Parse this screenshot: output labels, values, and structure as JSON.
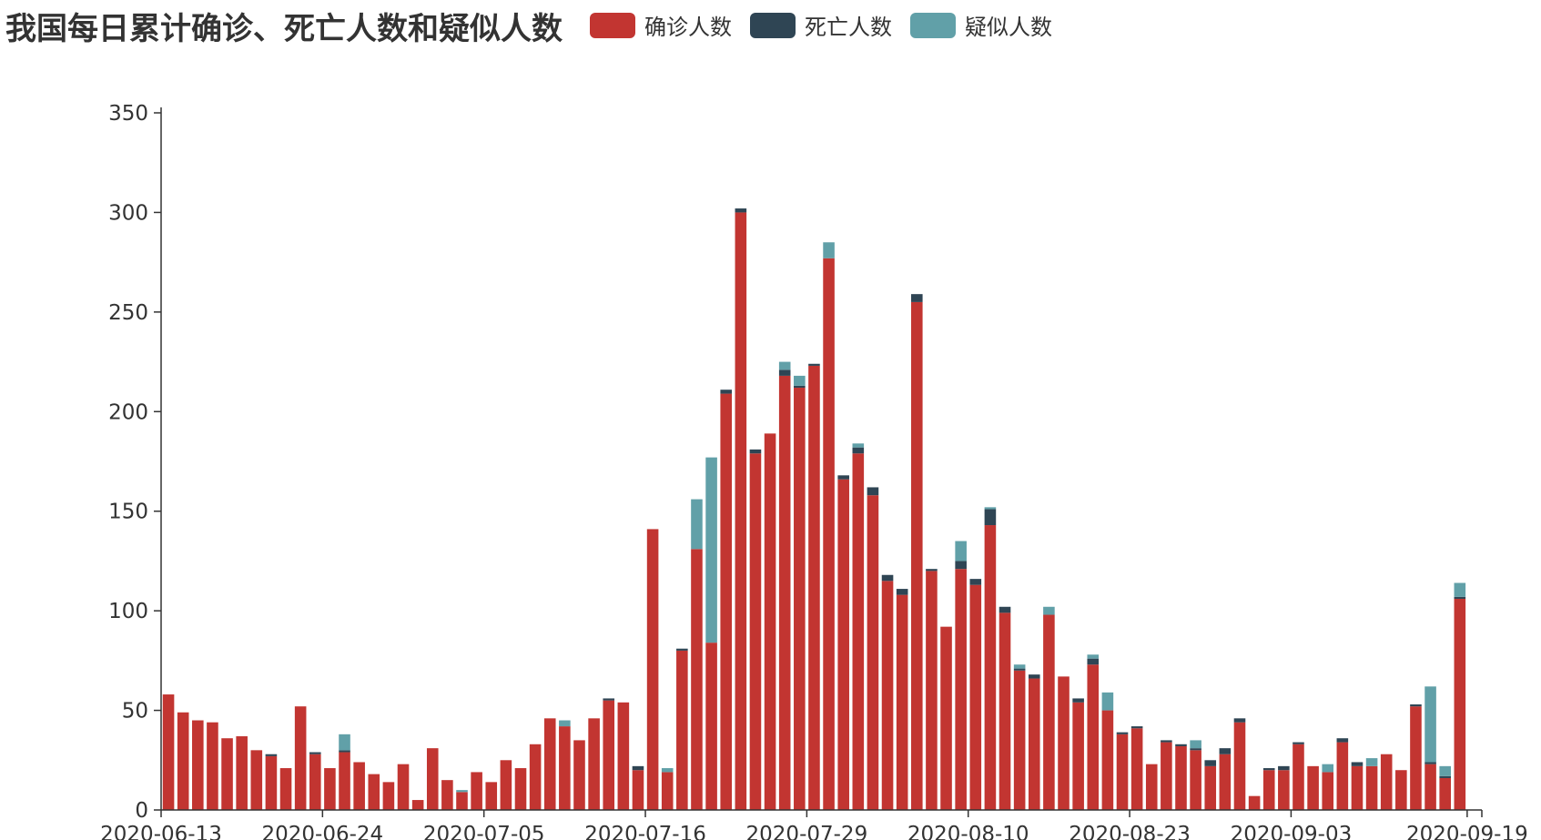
{
  "title": "我国每日累计确诊、死亡人数和疑似人数",
  "colors": {
    "confirmed": "#c23531",
    "deaths": "#2f4554",
    "suspected": "#61a0a8",
    "axis": "#333333"
  },
  "chart_data": {
    "type": "bar",
    "stacked": true,
    "title": "我国每日累计确诊、死亡人数和疑似人数",
    "legend_position": "top",
    "grid": false,
    "ylim": [
      0,
      350
    ],
    "y_ticks": [
      0,
      50,
      100,
      150,
      200,
      250,
      300,
      350
    ],
    "x_tick_labels": [
      "2020-06-13",
      "2020-06-24",
      "2020-07-05",
      "2020-07-16",
      "2020-07-29",
      "2020-08-10",
      "2020-08-23",
      "2020-09-03",
      "2020-09-19"
    ],
    "x_tick_indices": [
      0,
      11,
      22,
      33,
      44,
      55,
      66,
      77,
      89
    ],
    "categories": [
      "2020-06-13",
      "2020-06-14",
      "2020-06-15",
      "2020-06-16",
      "2020-06-17",
      "2020-06-18",
      "2020-06-19",
      "2020-06-20",
      "2020-06-21",
      "2020-06-22",
      "2020-06-23",
      "2020-06-24",
      "2020-06-25",
      "2020-06-26",
      "2020-06-27",
      "2020-06-28",
      "2020-06-29",
      "2020-06-30",
      "2020-07-01",
      "2020-07-02",
      "2020-07-03",
      "2020-07-04",
      "2020-07-05",
      "2020-07-06",
      "2020-07-07",
      "2020-07-08",
      "2020-07-09",
      "2020-07-10",
      "2020-07-11",
      "2020-07-12",
      "2020-07-13",
      "2020-07-14",
      "2020-07-15",
      "2020-07-16",
      "2020-07-17",
      "2020-07-18",
      "2020-07-19",
      "2020-07-20",
      "2020-07-21",
      "2020-07-22",
      "2020-07-23",
      "2020-07-24",
      "2020-07-25",
      "2020-07-26",
      "2020-07-29",
      "2020-07-30",
      "2020-07-31",
      "2020-08-01",
      "2020-08-02",
      "2020-08-03",
      "2020-08-04",
      "2020-08-05",
      "2020-08-06",
      "2020-08-07",
      "2020-08-08",
      "2020-08-10",
      "2020-08-11",
      "2020-08-12",
      "2020-08-13",
      "2020-08-14",
      "2020-08-15",
      "2020-08-16",
      "2020-08-17",
      "2020-08-18",
      "2020-08-19",
      "2020-08-20",
      "2020-08-23",
      "2020-08-24",
      "2020-08-25",
      "2020-08-26",
      "2020-08-27",
      "2020-08-28",
      "2020-08-29",
      "2020-08-30",
      "2020-08-31",
      "2020-09-01",
      "2020-09-02",
      "2020-09-03",
      "2020-09-04",
      "2020-09-05",
      "2020-09-06",
      "2020-09-07",
      "2020-09-08",
      "2020-09-09",
      "2020-09-10",
      "2020-09-11",
      "2020-09-12",
      "2020-09-13",
      "2020-09-14",
      "2020-09-19"
    ],
    "series": [
      {
        "name": "确诊人数",
        "color": "#c23531",
        "values": [
          58,
          49,
          45,
          44,
          36,
          37,
          30,
          27,
          21,
          52,
          28,
          21,
          29,
          24,
          18,
          14,
          23,
          5,
          31,
          15,
          9,
          19,
          14,
          25,
          21,
          33,
          46,
          42,
          35,
          46,
          55,
          54,
          20,
          141,
          19,
          80,
          131,
          84,
          209,
          300,
          179,
          189,
          218,
          212,
          223,
          277,
          166,
          179,
          158,
          115,
          108,
          255,
          120,
          92,
          121,
          113,
          143,
          99,
          70,
          66,
          98,
          67,
          54,
          73,
          50,
          38,
          41,
          23,
          34,
          32,
          30,
          22,
          28,
          44,
          7,
          20,
          20,
          33,
          22,
          19,
          34,
          22,
          22,
          28,
          20,
          52,
          23,
          16,
          106,
          0
        ]
      },
      {
        "name": "死亡人数",
        "color": "#2f4554",
        "values": [
          0,
          0,
          0,
          0,
          0,
          0,
          0,
          1,
          0,
          0,
          1,
          0,
          1,
          0,
          0,
          0,
          0,
          0,
          0,
          0,
          0,
          0,
          0,
          0,
          0,
          0,
          0,
          0,
          0,
          0,
          1,
          0,
          2,
          0,
          0,
          1,
          0,
          0,
          2,
          2,
          2,
          0,
          3,
          1,
          1,
          0,
          2,
          3,
          4,
          3,
          3,
          4,
          1,
          0,
          4,
          3,
          8,
          3,
          1,
          2,
          0,
          0,
          2,
          3,
          0,
          1,
          1,
          0,
          1,
          1,
          1,
          3,
          3,
          2,
          0,
          1,
          2,
          1,
          0,
          0,
          2,
          2,
          0,
          0,
          0,
          1,
          1,
          1,
          1,
          0
        ]
      },
      {
        "name": "疑似人数",
        "color": "#61a0a8",
        "values": [
          0,
          0,
          0,
          0,
          0,
          0,
          0,
          0,
          0,
          0,
          0,
          0,
          8,
          0,
          0,
          0,
          0,
          0,
          0,
          0,
          1,
          0,
          0,
          0,
          0,
          0,
          0,
          3,
          0,
          0,
          0,
          0,
          0,
          0,
          2,
          0,
          25,
          93,
          0,
          0,
          0,
          0,
          4,
          5,
          0,
          8,
          0,
          2,
          0,
          0,
          0,
          0,
          0,
          0,
          10,
          0,
          1,
          0,
          2,
          0,
          4,
          0,
          0,
          2,
          9,
          0,
          0,
          0,
          0,
          0,
          4,
          0,
          0,
          0,
          0,
          0,
          0,
          0,
          0,
          4,
          0,
          0,
          4,
          0,
          0,
          0,
          38,
          5,
          7,
          0
        ]
      }
    ]
  }
}
